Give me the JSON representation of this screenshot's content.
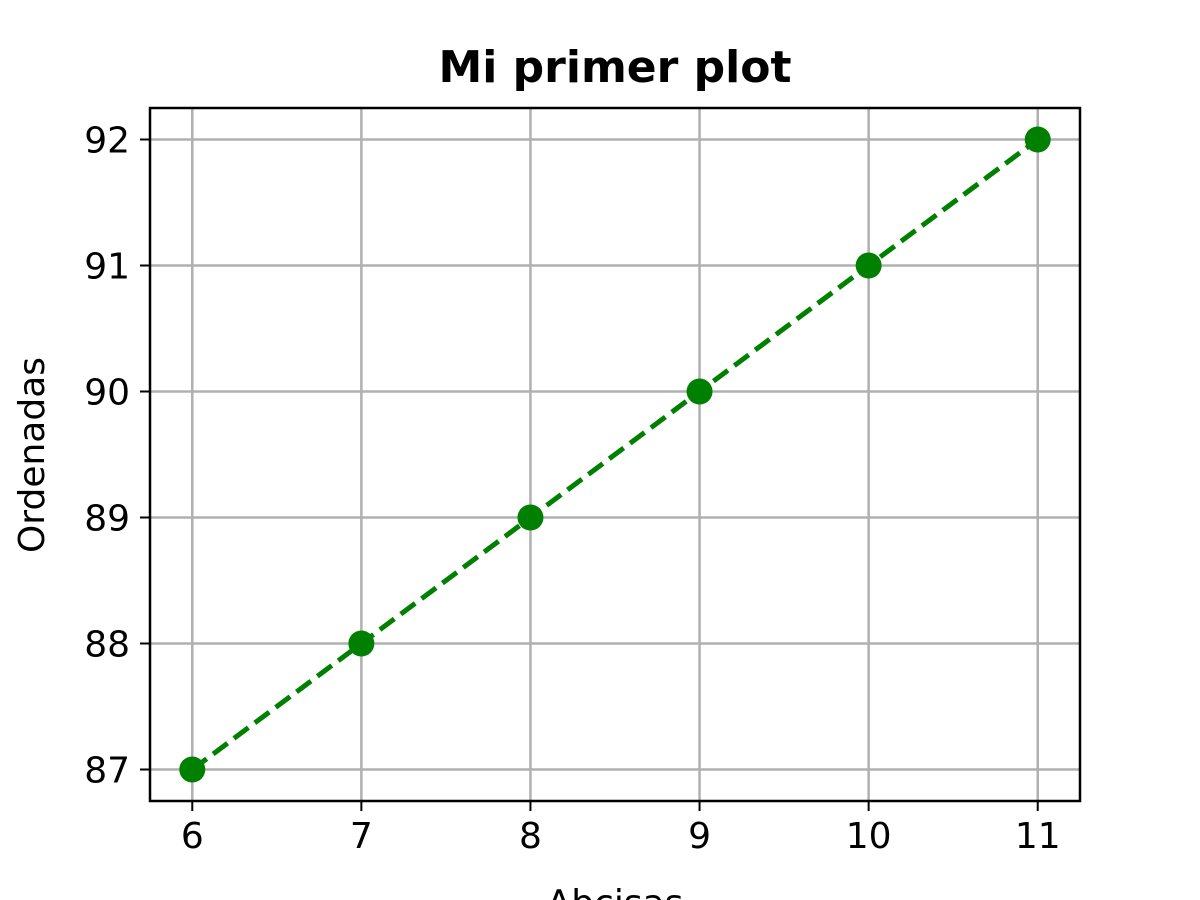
{
  "chart_data": {
    "type": "line",
    "title": "Mi primer plot",
    "xlabel": "Abcisas",
    "ylabel": "Ordenadas",
    "x": [
      6,
      7,
      8,
      9,
      10,
      11
    ],
    "series": [
      {
        "values": [
          87,
          88,
          89,
          90,
          91,
          92
        ],
        "color": "#008000",
        "line_style": "dashed",
        "marker": "circle"
      }
    ],
    "x_ticks": [
      6,
      7,
      8,
      9,
      10,
      11
    ],
    "y_ticks": [
      87,
      88,
      89,
      90,
      91,
      92
    ],
    "xlim": [
      5.75,
      11.25
    ],
    "ylim": [
      86.75,
      92.25
    ],
    "grid": true,
    "legend": false
  }
}
